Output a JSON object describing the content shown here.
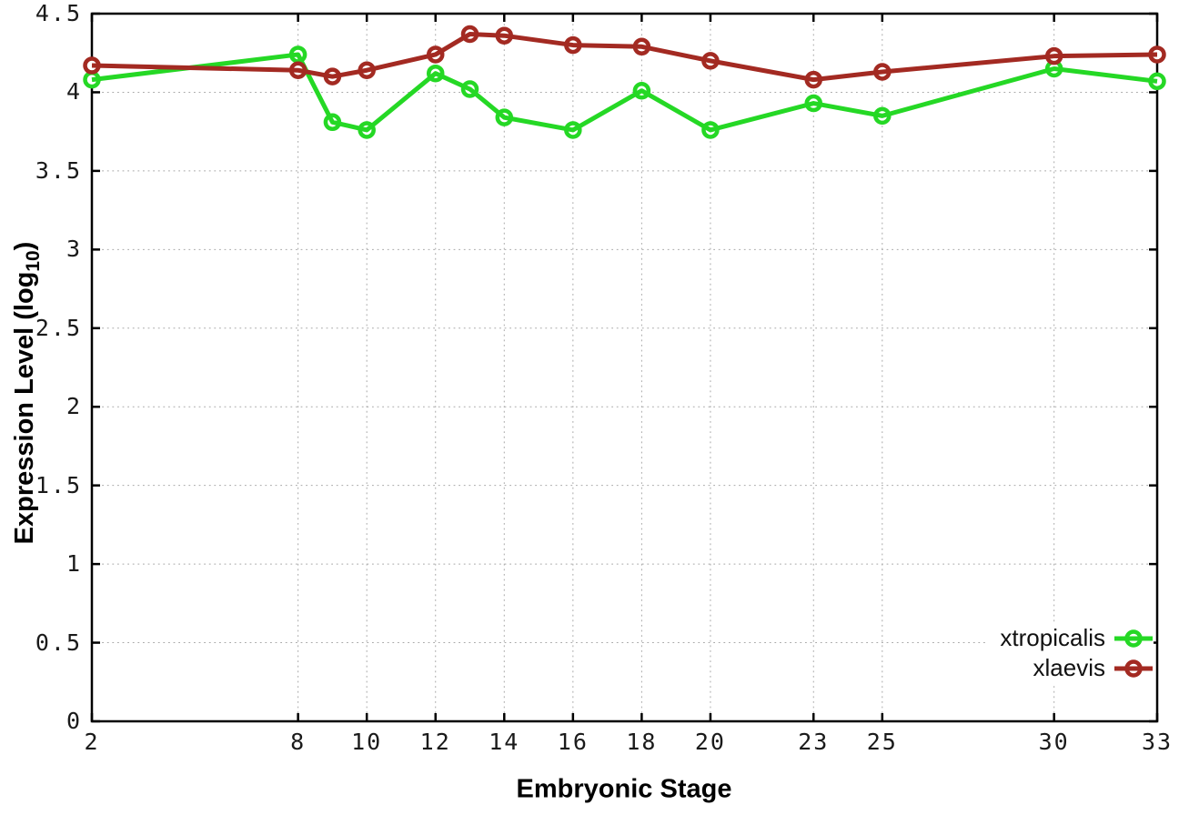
{
  "chart_data": {
    "type": "line",
    "title": "",
    "xlabel": "Embryonic Stage",
    "ylabel": "Expression Level (log10)",
    "ylabel_parts": {
      "prefix": "Expression Level (log",
      "sub": "10",
      "suffix": ")"
    },
    "xlim": [
      2,
      33
    ],
    "ylim": [
      0,
      4.5
    ],
    "grid": true,
    "legend_position": "inside bottom-right",
    "x": [
      2,
      8,
      9,
      10,
      12,
      13,
      14,
      16,
      18,
      20,
      23,
      25,
      30,
      33
    ],
    "xticks": [
      2,
      8,
      10,
      12,
      14,
      16,
      18,
      20,
      23,
      25,
      30,
      33
    ],
    "xtick_labels": [
      "2",
      "8",
      "10",
      "12",
      "14",
      "16",
      "18",
      "20",
      "23",
      "25",
      "30",
      "33"
    ],
    "yticks": [
      0,
      0.5,
      1,
      1.5,
      2,
      2.5,
      3,
      3.5,
      4,
      4.5
    ],
    "ytick_labels": [
      "0",
      "0.5",
      "1",
      "1.5",
      "2",
      "2.5",
      "3",
      "3.5",
      "4",
      "4.5"
    ],
    "series": [
      {
        "name": "xtropicalis",
        "color": "#25d825",
        "values": [
          4.08,
          4.24,
          3.81,
          3.76,
          4.12,
          4.02,
          3.84,
          3.76,
          4.01,
          3.76,
          3.93,
          3.85,
          4.15,
          4.07
        ]
      },
      {
        "name": "xlaevis",
        "color": "#a32a22",
        "values": [
          4.17,
          4.14,
          4.1,
          4.14,
          4.24,
          4.37,
          4.36,
          4.3,
          4.29,
          4.2,
          4.08,
          4.13,
          4.23,
          4.24
        ]
      }
    ],
    "colors": {
      "grid": "#a8a8a8",
      "axis": "#000000",
      "background": "#ffffff"
    }
  }
}
